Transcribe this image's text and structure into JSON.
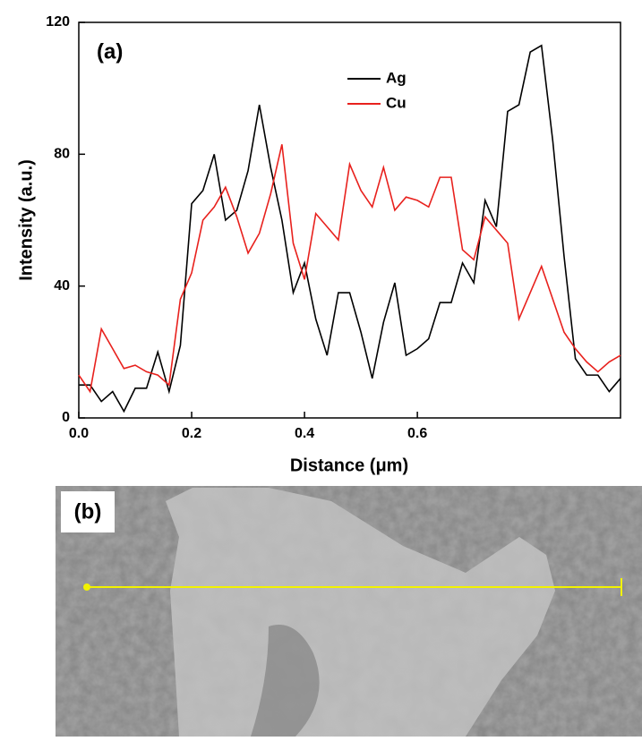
{
  "chart_data": {
    "type": "line",
    "annotations": [
      "(a)"
    ],
    "xlabel": "Distance (μm)",
    "ylabel": "Intensity (a.u.)",
    "x": [
      0,
      0.02,
      0.04,
      0.06,
      0.08,
      0.1,
      0.12,
      0.14,
      0.16,
      0.18,
      0.2,
      0.22,
      0.24,
      0.26,
      0.28,
      0.3,
      0.32,
      0.34,
      0.36,
      0.38,
      0.4,
      0.42,
      0.44,
      0.46,
      0.48,
      0.5,
      0.52,
      0.54,
      0.56,
      0.58,
      0.6,
      0.62,
      0.64,
      0.66,
      0.68,
      0.7,
      0.72,
      0.74,
      0.76,
      0.78,
      0.8,
      0.82,
      0.84,
      0.86,
      0.88,
      0.9,
      0.92,
      0.94,
      0.96
    ],
    "series": [
      {
        "name": "Ag",
        "color": "#000000",
        "values": [
          10,
          10,
          5,
          8,
          2,
          9,
          9,
          20,
          8,
          22,
          65,
          69,
          80,
          60,
          63,
          75,
          95,
          76,
          60,
          38,
          47,
          30,
          19,
          38,
          38,
          26,
          12,
          29,
          41,
          19,
          21,
          24,
          35,
          35,
          47,
          41,
          66,
          58,
          93,
          95,
          111,
          113,
          84,
          49,
          18,
          13,
          13,
          8,
          12
        ]
      },
      {
        "name": "Cu",
        "color": "#e8211d",
        "values": [
          13,
          8,
          27,
          21,
          15,
          16,
          14,
          13,
          10,
          36,
          44,
          60,
          64,
          70,
          61,
          50,
          56,
          68,
          83,
          53,
          42,
          62,
          58,
          54,
          77,
          69,
          64,
          76,
          63,
          67,
          66,
          64,
          73,
          73,
          51,
          48,
          61,
          57,
          53,
          30,
          38,
          46,
          36,
          26,
          21,
          17,
          14,
          17,
          19
        ]
      }
    ],
    "xlim": [
      0,
      0.96
    ],
    "xticks": [
      {
        "value": 0,
        "label": "0.0"
      },
      0.2,
      0.4,
      0.6
    ],
    "ylim": [
      0,
      120
    ],
    "yticks": [
      0,
      40,
      80,
      120
    ]
  },
  "image_panel": {
    "label": "(b)"
  }
}
